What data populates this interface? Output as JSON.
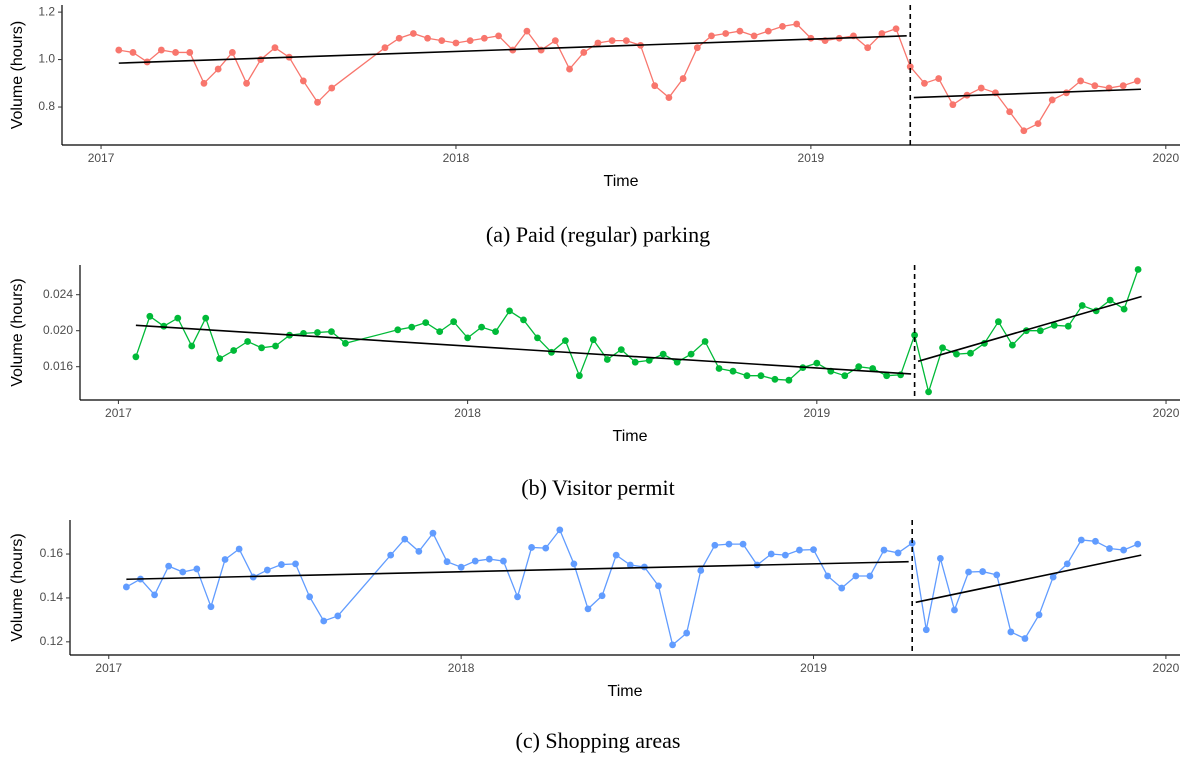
{
  "chart_data": [
    {
      "type": "line",
      "caption": "(a) Paid (regular) parking",
      "xlabel": "Time",
      "ylabel": "Volume (hours)",
      "color": "#F8766D",
      "fit_color": "#000000",
      "xlim": [
        2016.89,
        2020.04
      ],
      "ylim": [
        0.64,
        1.23
      ],
      "xticks": [
        2017,
        2018,
        2019,
        2020
      ],
      "yticks": [
        0.8,
        {
          "value": 1,
          "label": "1.0"
        },
        1.2
      ],
      "breakpoint": 2019.28,
      "x": [
        2017.05,
        2017.09,
        2017.13,
        2017.17,
        2017.21,
        2017.25,
        2017.29,
        2017.33,
        2017.37,
        2017.41,
        2017.45,
        2017.49,
        2017.53,
        2017.57,
        2017.61,
        2017.65,
        2017.8,
        2017.84,
        2017.88,
        2017.92,
        2017.96,
        2018.0,
        2018.04,
        2018.08,
        2018.12,
        2018.16,
        2018.2,
        2018.24,
        2018.28,
        2018.32,
        2018.36,
        2018.4,
        2018.44,
        2018.48,
        2018.52,
        2018.56,
        2018.6,
        2018.64,
        2018.68,
        2018.72,
        2018.76,
        2018.8,
        2018.84,
        2018.88,
        2018.92,
        2018.96,
        2019.0,
        2019.04,
        2019.08,
        2019.12,
        2019.16,
        2019.2,
        2019.24,
        2019.28,
        2019.32,
        2019.36,
        2019.4,
        2019.44,
        2019.48,
        2019.52,
        2019.56,
        2019.6,
        2019.64,
        2019.68,
        2019.72,
        2019.76,
        2019.8,
        2019.84,
        2019.88,
        2019.92
      ],
      "values": [
        1.04,
        1.03,
        0.99,
        1.04,
        1.03,
        1.03,
        0.9,
        0.96,
        1.03,
        0.9,
        1.0,
        1.05,
        1.01,
        0.91,
        0.82,
        0.88,
        1.05,
        1.09,
        1.11,
        1.09,
        1.08,
        1.07,
        1.08,
        1.09,
        1.1,
        1.04,
        1.12,
        1.04,
        1.08,
        0.96,
        1.03,
        1.07,
        1.08,
        1.08,
        1.06,
        0.89,
        0.84,
        0.92,
        1.05,
        1.1,
        1.11,
        1.12,
        1.1,
        1.12,
        1.14,
        1.15,
        1.09,
        1.08,
        1.09,
        1.1,
        1.05,
        1.11,
        1.13,
        0.97,
        0.9,
        0.92,
        0.81,
        0.85,
        0.88,
        0.86,
        0.78,
        0.7,
        0.73,
        0.83,
        0.86,
        0.91,
        0.89,
        0.88,
        0.89,
        0.91
      ],
      "fits": [
        {
          "x": [
            2017.05,
            2019.27
          ],
          "values": [
            0.985,
            1.1
          ]
        },
        {
          "x": [
            2019.29,
            2019.93
          ],
          "values": [
            0.84,
            0.875
          ]
        }
      ]
    },
    {
      "type": "line",
      "caption": "(b) Visitor permit",
      "xlabel": "Time",
      "ylabel": "Volume (hours)",
      "color": "#00BA38",
      "fit_color": "#000000",
      "xlim": [
        2016.89,
        2020.04
      ],
      "ylim": [
        0.0123,
        0.0273
      ],
      "xticks": [
        2017,
        2018,
        2019,
        2020
      ],
      "yticks": [
        0.016,
        {
          "value": 0.02,
          "label": "0.020"
        },
        0.024
      ],
      "breakpoint": 2019.28,
      "x": [
        2017.05,
        2017.09,
        2017.13,
        2017.17,
        2017.21,
        2017.25,
        2017.29,
        2017.33,
        2017.37,
        2017.41,
        2017.45,
        2017.49,
        2017.53,
        2017.57,
        2017.61,
        2017.65,
        2017.8,
        2017.84,
        2017.88,
        2017.92,
        2017.96,
        2018.0,
        2018.04,
        2018.08,
        2018.12,
        2018.16,
        2018.2,
        2018.24,
        2018.28,
        2018.32,
        2018.36,
        2018.4,
        2018.44,
        2018.48,
        2018.52,
        2018.56,
        2018.6,
        2018.64,
        2018.68,
        2018.72,
        2018.76,
        2018.8,
        2018.84,
        2018.88,
        2018.92,
        2018.96,
        2019.0,
        2019.04,
        2019.08,
        2019.12,
        2019.16,
        2019.2,
        2019.24,
        2019.28,
        2019.32,
        2019.36,
        2019.4,
        2019.44,
        2019.48,
        2019.52,
        2019.56,
        2019.6,
        2019.64,
        2019.68,
        2019.72,
        2019.76,
        2019.8,
        2019.84,
        2019.88,
        2019.92
      ],
      "values": [
        0.0171,
        0.0216,
        0.0205,
        0.0214,
        0.0183,
        0.0214,
        0.0169,
        0.0178,
        0.0188,
        0.0181,
        0.0183,
        0.0195,
        0.0197,
        0.0198,
        0.0199,
        0.0186,
        0.0201,
        0.0204,
        0.0209,
        0.0199,
        0.021,
        0.0192,
        0.0204,
        0.0199,
        0.0222,
        0.0212,
        0.0192,
        0.0176,
        0.0189,
        0.015,
        0.019,
        0.0168,
        0.0179,
        0.0165,
        0.0167,
        0.0174,
        0.0165,
        0.0174,
        0.0188,
        0.0158,
        0.0155,
        0.015,
        0.015,
        0.0146,
        0.0145,
        0.0159,
        0.0164,
        0.0155,
        0.015,
        0.016,
        0.0158,
        0.015,
        0.0151,
        0.0195,
        0.0132,
        0.0181,
        0.0174,
        0.0175,
        0.0186,
        0.021,
        0.0184,
        0.02,
        0.02,
        0.0206,
        0.0205,
        0.0228,
        0.0222,
        0.0234,
        0.0224,
        0.0268
      ],
      "fits": [
        {
          "x": [
            2017.05,
            2019.27
          ],
          "values": [
            0.0206,
            0.0152
          ]
        },
        {
          "x": [
            2019.29,
            2019.93
          ],
          "values": [
            0.0166,
            0.0238
          ]
        }
      ]
    },
    {
      "type": "line",
      "caption": "(c) Shopping areas",
      "xlabel": "Time",
      "ylabel": "Volume (hours)",
      "color": "#619CFF",
      "fit_color": "#000000",
      "xlim": [
        2016.89,
        2020.04
      ],
      "ylim": [
        0.114,
        0.1755
      ],
      "xticks": [
        2017,
        2018,
        2019,
        2020
      ],
      "yticks": [
        0.12,
        0.14,
        0.16
      ],
      "breakpoint": 2019.28,
      "x": [
        2017.05,
        2017.09,
        2017.13,
        2017.17,
        2017.21,
        2017.25,
        2017.29,
        2017.33,
        2017.37,
        2017.41,
        2017.45,
        2017.49,
        2017.53,
        2017.57,
        2017.61,
        2017.65,
        2017.8,
        2017.84,
        2017.88,
        2017.92,
        2017.96,
        2018.0,
        2018.04,
        2018.08,
        2018.12,
        2018.16,
        2018.2,
        2018.24,
        2018.28,
        2018.32,
        2018.36,
        2018.4,
        2018.44,
        2018.48,
        2018.52,
        2018.56,
        2018.6,
        2018.64,
        2018.68,
        2018.72,
        2018.76,
        2018.8,
        2018.84,
        2018.88,
        2018.92,
        2018.96,
        2019.0,
        2019.04,
        2019.08,
        2019.12,
        2019.16,
        2019.2,
        2019.24,
        2019.28,
        2019.32,
        2019.36,
        2019.4,
        2019.44,
        2019.48,
        2019.52,
        2019.56,
        2019.6,
        2019.64,
        2019.68,
        2019.72,
        2019.76,
        2019.8,
        2019.84,
        2019.88,
        2019.92
      ],
      "values": [
        0.145,
        0.1486,
        0.1414,
        0.1545,
        0.1518,
        0.1532,
        0.136,
        0.1575,
        0.1623,
        0.1495,
        0.1527,
        0.1552,
        0.1555,
        0.1405,
        0.1295,
        0.1318,
        0.1595,
        0.1668,
        0.1612,
        0.1695,
        0.1565,
        0.154,
        0.1568,
        0.1577,
        0.1568,
        0.1405,
        0.163,
        0.1627,
        0.171,
        0.1555,
        0.135,
        0.141,
        0.1595,
        0.155,
        0.1541,
        0.1455,
        0.1186,
        0.124,
        0.1525,
        0.164,
        0.1645,
        0.1645,
        0.155,
        0.16,
        0.1595,
        0.1618,
        0.162,
        0.15,
        0.1445,
        0.15,
        0.15,
        0.1618,
        0.1605,
        0.165,
        0.1255,
        0.158,
        0.1345,
        0.1518,
        0.152,
        0.1505,
        0.1245,
        0.1215,
        0.1323,
        0.1495,
        0.1555,
        0.1664,
        0.1658,
        0.1625,
        0.1618,
        0.1645
      ],
      "fits": [
        {
          "x": [
            2017.05,
            2019.27
          ],
          "values": [
            0.1485,
            0.1565
          ]
        },
        {
          "x": [
            2019.29,
            2019.93
          ],
          "values": [
            0.138,
            0.1595
          ]
        }
      ]
    }
  ]
}
